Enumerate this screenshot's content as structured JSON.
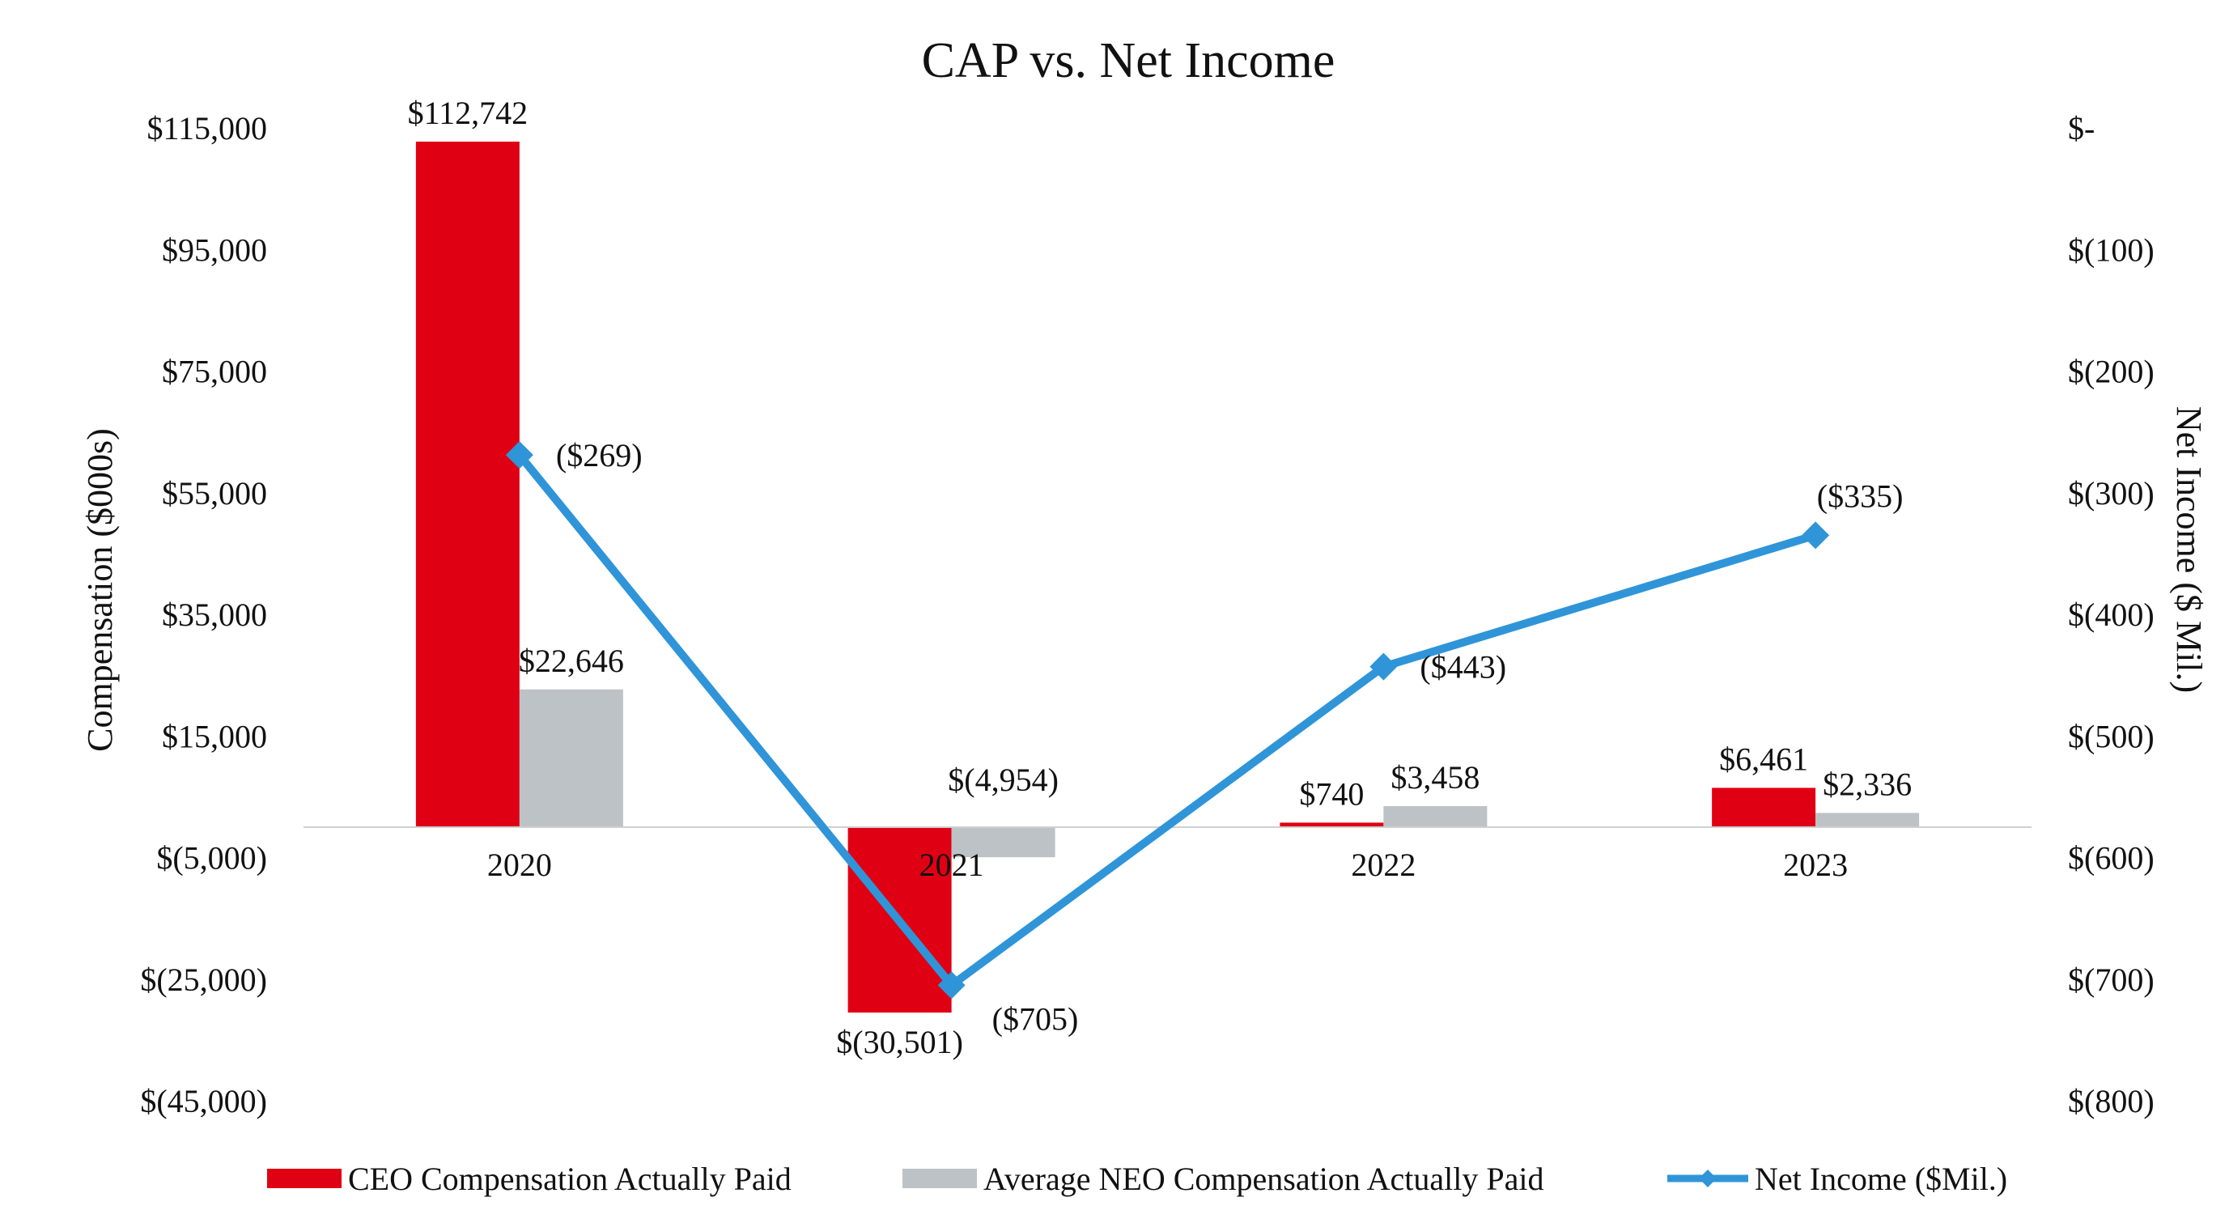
{
  "chart_data": {
    "type": "bar",
    "title": "CAP vs. Net Income",
    "categories": [
      "2020",
      "2021",
      "2022",
      "2023"
    ],
    "ylabel": "Compensation ($000s)",
    "y2label": "Net Income ($ Mil.)",
    "ylim": [
      -45000,
      115000
    ],
    "y2lim": [
      -800,
      0
    ],
    "y_ticks": [
      115000,
      95000,
      75000,
      55000,
      35000,
      15000,
      -5000,
      -25000,
      -45000
    ],
    "y_tick_labels": [
      "$115,000",
      "$95,000",
      "$75,000",
      "$55,000",
      "$35,000",
      "$15,000",
      "$(5,000)",
      "$(25,000)",
      "$(45,000)"
    ],
    "y2_ticks": [
      0,
      -100,
      -200,
      -300,
      -400,
      -500,
      -600,
      -700,
      -800
    ],
    "y2_tick_labels": [
      "$-",
      "$(100)",
      "$(200)",
      "$(300)",
      "$(400)",
      "$(500)",
      "$(600)",
      "$(700)",
      "$(800)"
    ],
    "grid": false,
    "legend_position": "bottom",
    "series": [
      {
        "name": "CEO Compensation Actually Paid",
        "type": "bar",
        "axis": "left",
        "color": "#e00014",
        "values": [
          112742,
          -30501,
          740,
          6461
        ],
        "labels": [
          "$112,742",
          "$(30,501)",
          "$740",
          "$6,461"
        ]
      },
      {
        "name": "Average NEO Compensation Actually Paid",
        "type": "bar",
        "axis": "left",
        "color": "#bdc2c6",
        "values": [
          22646,
          -4954,
          3458,
          2336
        ],
        "labels": [
          "$22,646",
          "$(4,954)",
          "$3,458",
          "$2,336"
        ]
      },
      {
        "name": "Net Income ($Mil.)",
        "type": "line",
        "axis": "right",
        "color": "#2f95d8",
        "marker": "diamond",
        "values": [
          -269,
          -705,
          -443,
          -335
        ],
        "labels": [
          "($269)",
          "($705)",
          "($443)",
          "($335)"
        ]
      }
    ]
  }
}
